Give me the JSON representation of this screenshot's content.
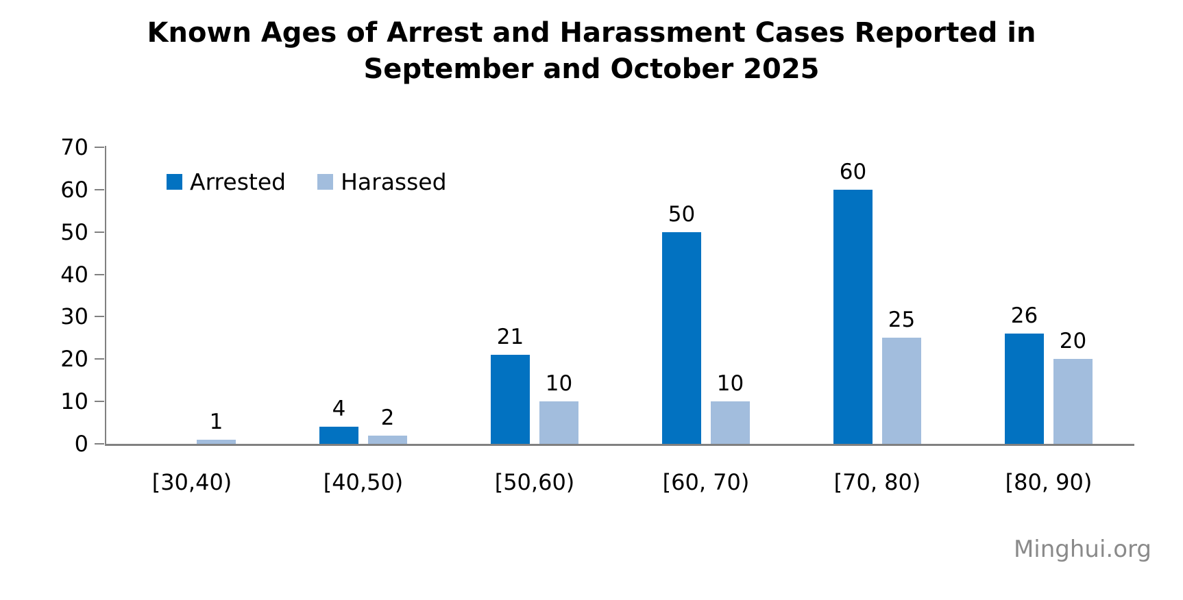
{
  "title": "Known Ages of Arrest and Harassment Cases Reported in September and October 2025",
  "watermark": "Minghui.org",
  "colors": {
    "arrested": "#0272C1",
    "harassed": "#A2BDDD",
    "axis": "#808080",
    "text": "#000000",
    "watermark": "#8A8A8A",
    "background": "#FFFFFF"
  },
  "legend": {
    "items": [
      {
        "label": "Arrested",
        "color_key": "arrested"
      },
      {
        "label": "Harassed",
        "color_key": "harassed"
      }
    ]
  },
  "chart_data": {
    "type": "bar",
    "title": "Known Ages of Arrest and Harassment Cases Reported in September and October 2025",
    "categories": [
      "[30,40)",
      "[40,50)",
      "[50,60)",
      "[60, 70)",
      "[70, 80)",
      "[80, 90)"
    ],
    "series": [
      {
        "name": "Arrested",
        "color_key": "arrested",
        "values": [
          0,
          4,
          21,
          50,
          60,
          26
        ]
      },
      {
        "name": "Harassed",
        "color_key": "harassed",
        "values": [
          1,
          2,
          10,
          10,
          25,
          20
        ]
      }
    ],
    "xlabel": "",
    "ylabel": "",
    "ylim": [
      0,
      70
    ],
    "yticks": [
      0,
      10,
      20,
      30,
      40,
      50,
      60,
      70
    ],
    "grid": false,
    "legend_position": "top-left-inside",
    "show_value_labels": true,
    "hide_zero_bars": true
  }
}
